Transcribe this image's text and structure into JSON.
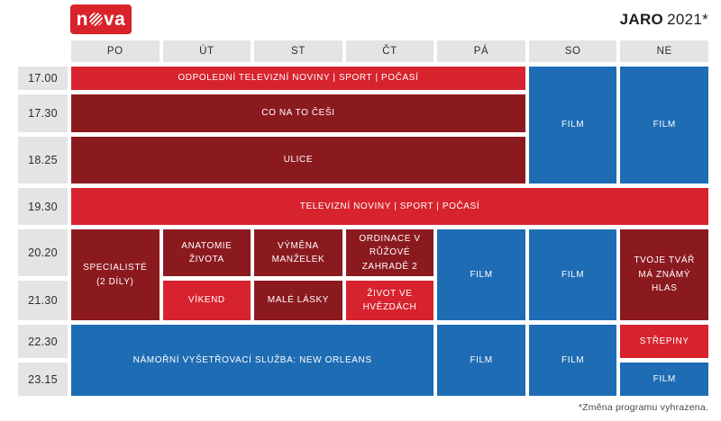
{
  "header": {
    "logo_n": "n",
    "logo_va": "va",
    "season": "JARO",
    "year": "2021*"
  },
  "colors": {
    "logo_red": "#d8232a",
    "bright_red": "#d7232e",
    "dark_red": "#8b1a1f",
    "blue": "#1e6cb4",
    "header_gray": "#e4e4e6"
  },
  "days": [
    "PO",
    "ÚT",
    "ST",
    "ČT",
    "PÁ",
    "SO",
    "NE"
  ],
  "times": [
    "17.00",
    "17.30",
    "18.25",
    "19.30",
    "20.20",
    "21.30",
    "22.30",
    "23.15"
  ],
  "programs": [
    {
      "label": "ODPOLEDNÍ TELEVIZNÍ NOVINY | SPORT | POČASÍ",
      "type": "bright_red",
      "day": 1,
      "dayspan": 5,
      "row": 1,
      "rowspan": 1
    },
    {
      "label": "CO NA TO ČEŠI",
      "type": "dark_red",
      "day": 1,
      "dayspan": 5,
      "row": 2,
      "rowspan": 1
    },
    {
      "label": "ULICE",
      "type": "dark_red",
      "day": 1,
      "dayspan": 5,
      "row": 3,
      "rowspan": 1
    },
    {
      "label": "FILM",
      "type": "blue",
      "day": 6,
      "dayspan": 1,
      "row": 1,
      "rowspan": 3
    },
    {
      "label": "FILM",
      "type": "blue",
      "day": 7,
      "dayspan": 1,
      "row": 1,
      "rowspan": 3
    },
    {
      "label": "TELEVIZNÍ NOVINY | SPORT | POČASÍ",
      "type": "bright_red",
      "day": 1,
      "dayspan": 7,
      "row": 4,
      "rowspan": 1
    },
    {
      "label": "SPECIALISTÉ (2 DÍLY)",
      "type": "dark_red",
      "day": 1,
      "dayspan": 1,
      "row": 5,
      "rowspan": 2
    },
    {
      "label": "ANATOMIE ŽIVOTA",
      "type": "dark_red",
      "day": 2,
      "dayspan": 1,
      "row": 5,
      "rowspan": 1
    },
    {
      "label": "VÝMĚNA MANŽELEK",
      "type": "dark_red",
      "day": 3,
      "dayspan": 1,
      "row": 5,
      "rowspan": 1
    },
    {
      "label": "ORDINACE V RŮŽOVÉ ZAHRADĚ 2",
      "type": "dark_red",
      "day": 4,
      "dayspan": 1,
      "row": 5,
      "rowspan": 1
    },
    {
      "label": "FILM",
      "type": "blue",
      "day": 5,
      "dayspan": 1,
      "row": 5,
      "rowspan": 2
    },
    {
      "label": "FILM",
      "type": "blue",
      "day": 6,
      "dayspan": 1,
      "row": 5,
      "rowspan": 2
    },
    {
      "label": "TVOJE TVÁŘ MÁ ZNÁMÝ HLAS",
      "type": "dark_red",
      "day": 7,
      "dayspan": 1,
      "row": 5,
      "rowspan": 2
    },
    {
      "label": "VÍKEND",
      "type": "bright_red",
      "day": 2,
      "dayspan": 1,
      "row": 6,
      "rowspan": 1
    },
    {
      "label": "MALÉ LÁSKY",
      "type": "dark_red",
      "day": 3,
      "dayspan": 1,
      "row": 6,
      "rowspan": 1
    },
    {
      "label": "ŽIVOT VE HVĚZDÁCH",
      "type": "bright_red",
      "day": 4,
      "dayspan": 1,
      "row": 6,
      "rowspan": 1
    },
    {
      "label": "NÁMOŘNÍ VYŠETŘOVACÍ SLUŽBA: NEW ORLEANS",
      "type": "blue",
      "day": 1,
      "dayspan": 4,
      "row": 7,
      "rowspan": 2
    },
    {
      "label": "FILM",
      "type": "blue",
      "day": 5,
      "dayspan": 1,
      "row": 7,
      "rowspan": 2
    },
    {
      "label": "FILM",
      "type": "blue",
      "day": 6,
      "dayspan": 1,
      "row": 7,
      "rowspan": 2
    },
    {
      "label": "STŘEPINY",
      "type": "bright_red",
      "day": 7,
      "dayspan": 1,
      "row": 7,
      "rowspan": 1
    },
    {
      "label": "FILM",
      "type": "blue",
      "day": 7,
      "dayspan": 1,
      "row": 8,
      "rowspan": 1
    }
  ],
  "footer": {
    "note": "*Změna programu vyhrazena."
  }
}
